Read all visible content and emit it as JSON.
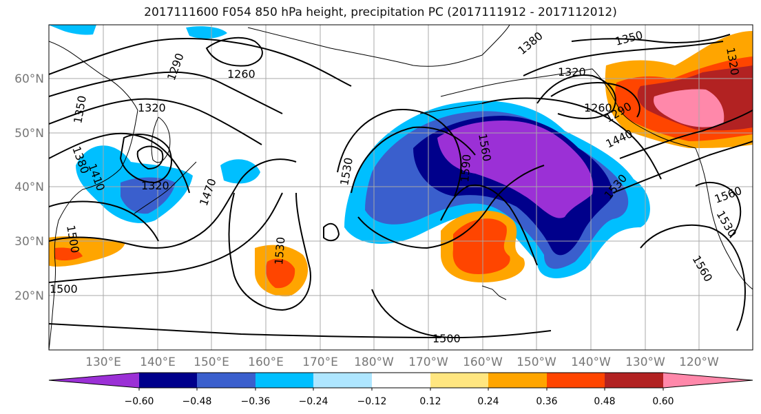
{
  "title": "2017111600 F054 850 hPa height, precipitation PC (2017111912 - 2017112012)",
  "map": {
    "lat_ticks": [
      "60°N",
      "50°N",
      "40°N",
      "30°N",
      "20°N"
    ],
    "lon_ticks": [
      "130°E",
      "140°E",
      "150°E",
      "160°E",
      "170°E",
      "180°W",
      "170°W",
      "160°W",
      "150°W",
      "140°W",
      "130°W",
      "120°W"
    ],
    "contour_labels": [
      "1290",
      "1260",
      "1320",
      "1350",
      "1380",
      "1410",
      "1320",
      "1470",
      "1530",
      "1500",
      "1530",
      "1500",
      "1590",
      "1560",
      "1500",
      "1380",
      "1350",
      "1320",
      "1320",
      "1260",
      "1290",
      "1440",
      "1530",
      "1560",
      "1530",
      "1560"
    ]
  },
  "colorbar": {
    "tick_labels": [
      "−0.60",
      "−0.48",
      "−0.36",
      "−0.24",
      "−0.12",
      "0.12",
      "0.24",
      "0.36",
      "0.48",
      "0.60"
    ],
    "colors": [
      "#9b30d6",
      "#00008b",
      "#3a5fcd",
      "#00bfff",
      "#aee6ff",
      "#ffffff",
      "#ffe680",
      "#ffa500",
      "#ff4500",
      "#b22222",
      "#ff88aa"
    ]
  },
  "colors": {
    "ocean": "#ffffff",
    "grid": "#a8a8a8",
    "tick_text": "#777777",
    "contour": "#000000"
  }
}
